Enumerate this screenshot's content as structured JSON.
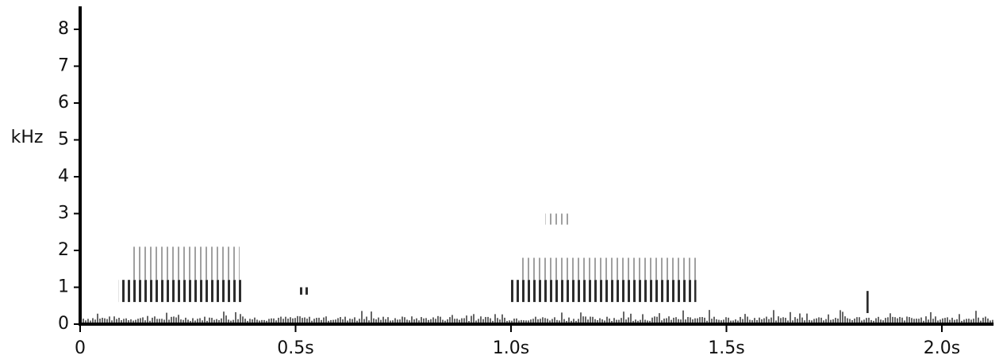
{
  "chart_data": {
    "type": "spectrogram",
    "ylabel": "kHz",
    "xlim": [
      0,
      2.12
    ],
    "ylim": [
      0,
      8.65
    ],
    "xticks": [
      0,
      {
        "value": 0.5,
        "label": "0.5s"
      },
      {
        "value": 1.0,
        "label": "1.0s"
      },
      {
        "value": 1.5,
        "label": "1.5s"
      },
      {
        "value": 2.0,
        "label": "2.0s"
      }
    ],
    "yticks": [
      0,
      1,
      2,
      3,
      4,
      5,
      6,
      7,
      8
    ],
    "color": "#222",
    "events": [
      {
        "start": 0.09,
        "end": 0.376,
        "low": 0.6,
        "high": 1.2
      },
      {
        "start": 0.12,
        "end": 0.37,
        "low": 1.2,
        "high": 2.1
      },
      {
        "start": 0.505,
        "end": 0.53,
        "low": 0.8,
        "high": 1.0
      },
      {
        "start": 1.0,
        "end": 1.43,
        "low": 0.6,
        "high": 1.2
      },
      {
        "start": 1.02,
        "end": 1.43,
        "low": 1.2,
        "high": 1.8
      },
      {
        "start": 1.08,
        "end": 1.14,
        "low": 2.7,
        "high": 3.0
      },
      {
        "start": 1.82,
        "end": 1.83,
        "low": 0.3,
        "high": 0.9
      }
    ]
  }
}
